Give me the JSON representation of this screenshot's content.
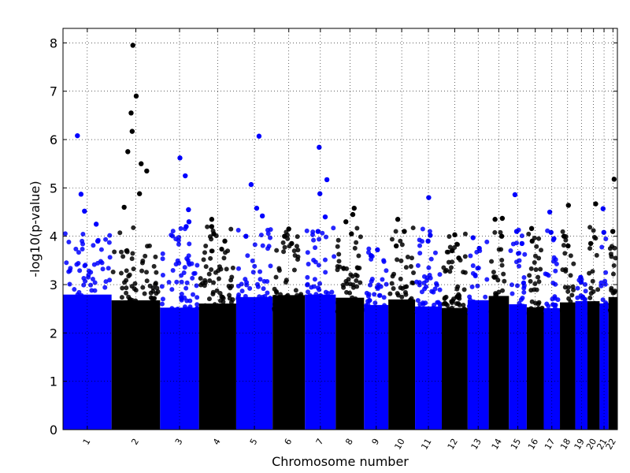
{
  "chart_data": {
    "type": "scatter",
    "subtype": "manhattan",
    "title": "",
    "xlabel": "Chromosome number",
    "ylabel": "-log10(p-value)",
    "ylim": [
      0,
      8.3
    ],
    "yticks": [
      0,
      1,
      2,
      3,
      4,
      5,
      6,
      7,
      8
    ],
    "grid": true,
    "grid_style": "dotted",
    "colors": {
      "odd": "#0000ff",
      "even": "#000000"
    },
    "chromosomes": [
      {
        "label": "1",
        "peak": 6.1,
        "top_hits": [
          6.08,
          4.87,
          4.52,
          4.25,
          3.9
        ]
      },
      {
        "label": "2",
        "peak": 7.95,
        "top_hits": [
          7.95,
          6.9,
          6.55,
          6.17,
          5.75,
          5.5,
          5.35,
          4.88,
          4.6
        ]
      },
      {
        "label": "3",
        "peak": 5.65,
        "top_hits": [
          5.62,
          5.25,
          4.55,
          4.3,
          4.2
        ]
      },
      {
        "label": "4",
        "peak": 4.35,
        "top_hits": [
          4.35,
          4.2,
          4.05,
          3.9
        ]
      },
      {
        "label": "5",
        "peak": 6.07,
        "top_hits": [
          6.07,
          5.07,
          4.58,
          4.42,
          4.0
        ]
      },
      {
        "label": "6",
        "peak": 4.15,
        "top_hits": [
          4.15,
          4.0,
          3.85
        ]
      },
      {
        "label": "7",
        "peak": 5.85,
        "top_hits": [
          5.84,
          5.17,
          4.88,
          4.4,
          4.1
        ]
      },
      {
        "label": "8",
        "peak": 4.6,
        "top_hits": [
          4.58,
          4.45,
          4.3,
          4.05
        ]
      },
      {
        "label": "9",
        "peak": 3.75,
        "top_hits": [
          3.72,
          3.6
        ]
      },
      {
        "label": "10",
        "peak": 4.35,
        "top_hits": [
          4.35,
          4.1,
          3.8
        ]
      },
      {
        "label": "11",
        "peak": 4.8,
        "top_hits": [
          4.8,
          4.02,
          3.9
        ]
      },
      {
        "label": "12",
        "peak": 4.05,
        "top_hits": [
          4.03,
          3.7,
          3.55
        ]
      },
      {
        "label": "13",
        "peak": 3.98,
        "top_hits": [
          3.97,
          3.75
        ]
      },
      {
        "label": "14",
        "peak": 4.37,
        "top_hits": [
          4.37,
          4.35,
          4.0
        ]
      },
      {
        "label": "15",
        "peak": 4.87,
        "top_hits": [
          4.86,
          4.1,
          3.85
        ]
      },
      {
        "label": "16",
        "peak": 4.17,
        "top_hits": [
          4.16,
          3.9
        ]
      },
      {
        "label": "17",
        "peak": 4.5,
        "top_hits": [
          4.5,
          4.08,
          3.95
        ]
      },
      {
        "label": "18",
        "peak": 4.65,
        "top_hits": [
          4.64,
          4.0,
          3.8
        ]
      },
      {
        "label": "19",
        "peak": 3.2,
        "top_hits": [
          3.15,
          3.05
        ]
      },
      {
        "label": "20",
        "peak": 4.67,
        "top_hits": [
          4.67,
          3.85
        ]
      },
      {
        "label": "21",
        "peak": 4.58,
        "top_hits": [
          4.57,
          4.08
        ]
      },
      {
        "label": "22",
        "peak": 5.18,
        "top_hits": [
          5.18,
          4.1
        ]
      }
    ],
    "background_band_max": 2.8
  }
}
